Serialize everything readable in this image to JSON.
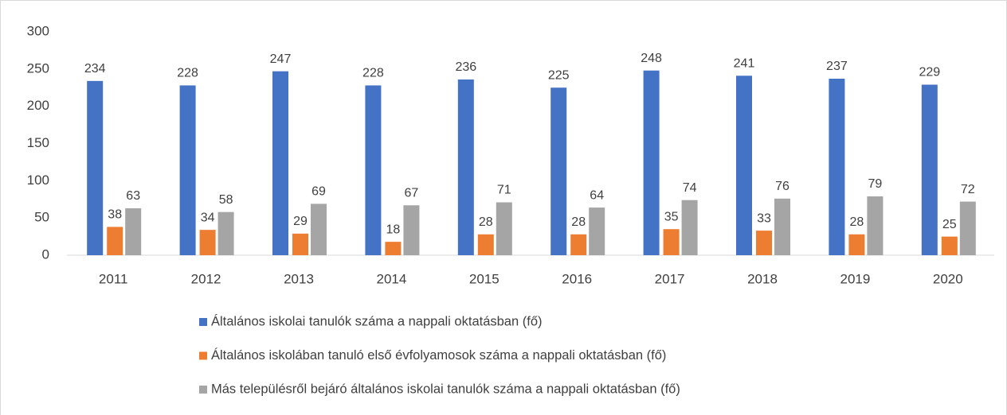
{
  "chart_data": {
    "type": "bar",
    "categories": [
      "2011",
      "2012",
      "2013",
      "2014",
      "2015",
      "2016",
      "2017",
      "2018",
      "2019",
      "2020"
    ],
    "series": [
      {
        "name": "Általános iskolai tanulók száma a nappali oktatásban (fő)",
        "color": "#4472c4",
        "values": [
          234,
          228,
          247,
          228,
          236,
          225,
          248,
          241,
          237,
          229
        ]
      },
      {
        "name": "Általános iskolában tanuló első évfolyamosok száma a nappali oktatásban (fő)",
        "color": "#ed7d31",
        "values": [
          38,
          34,
          29,
          18,
          28,
          28,
          35,
          33,
          28,
          25
        ]
      },
      {
        "name": "Más településről bejáró általános iskolai tanulók száma a nappali oktatásban (fő)",
        "color": "#a5a5a5",
        "values": [
          63,
          58,
          69,
          67,
          71,
          64,
          74,
          76,
          79,
          72
        ]
      }
    ],
    "ylim": [
      0,
      300
    ],
    "yticks": [
      0,
      50,
      100,
      150,
      200,
      250,
      300
    ],
    "grid": false,
    "legend": "bottom"
  }
}
